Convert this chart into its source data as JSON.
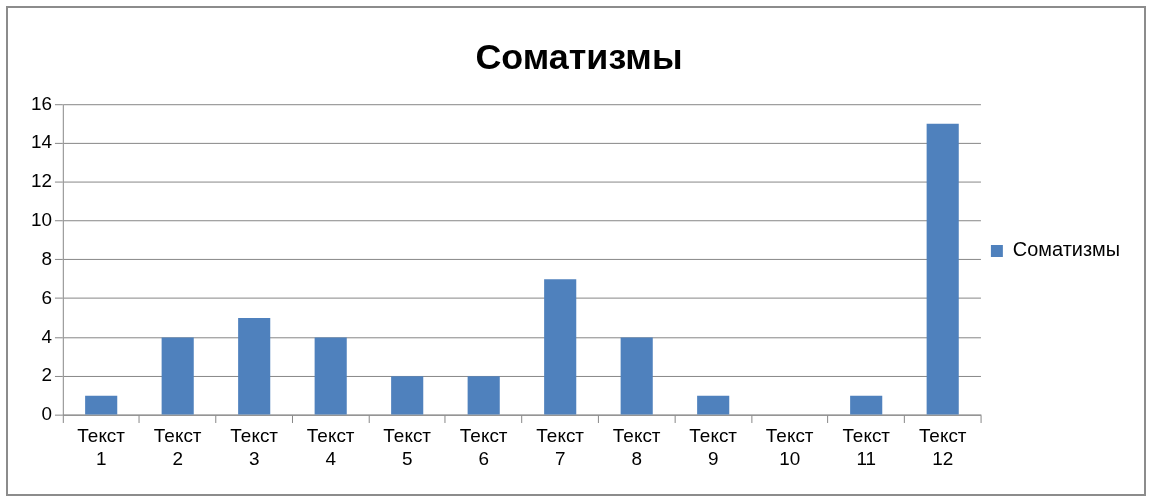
{
  "chart_data": {
    "type": "bar",
    "title": "Соматизмы",
    "categories": [
      "Текст 1",
      "Текст 2",
      "Текст 3",
      "Текст 4",
      "Текст 5",
      "Текст 6",
      "Текст 7",
      "Текст 8",
      "Текст 9",
      "Текст 10",
      "Текст 11",
      "Текст 12"
    ],
    "series": [
      {
        "name": "Соматизмы",
        "color": "#4f81bd",
        "values": [
          1,
          4,
          5,
          4,
          2,
          2,
          7,
          4,
          1,
          0,
          1,
          15
        ]
      }
    ],
    "ylim": [
      0,
      16
    ],
    "yticks": [
      0,
      2,
      4,
      6,
      8,
      10,
      12,
      14,
      16
    ],
    "grid": "y",
    "legend": "right"
  }
}
